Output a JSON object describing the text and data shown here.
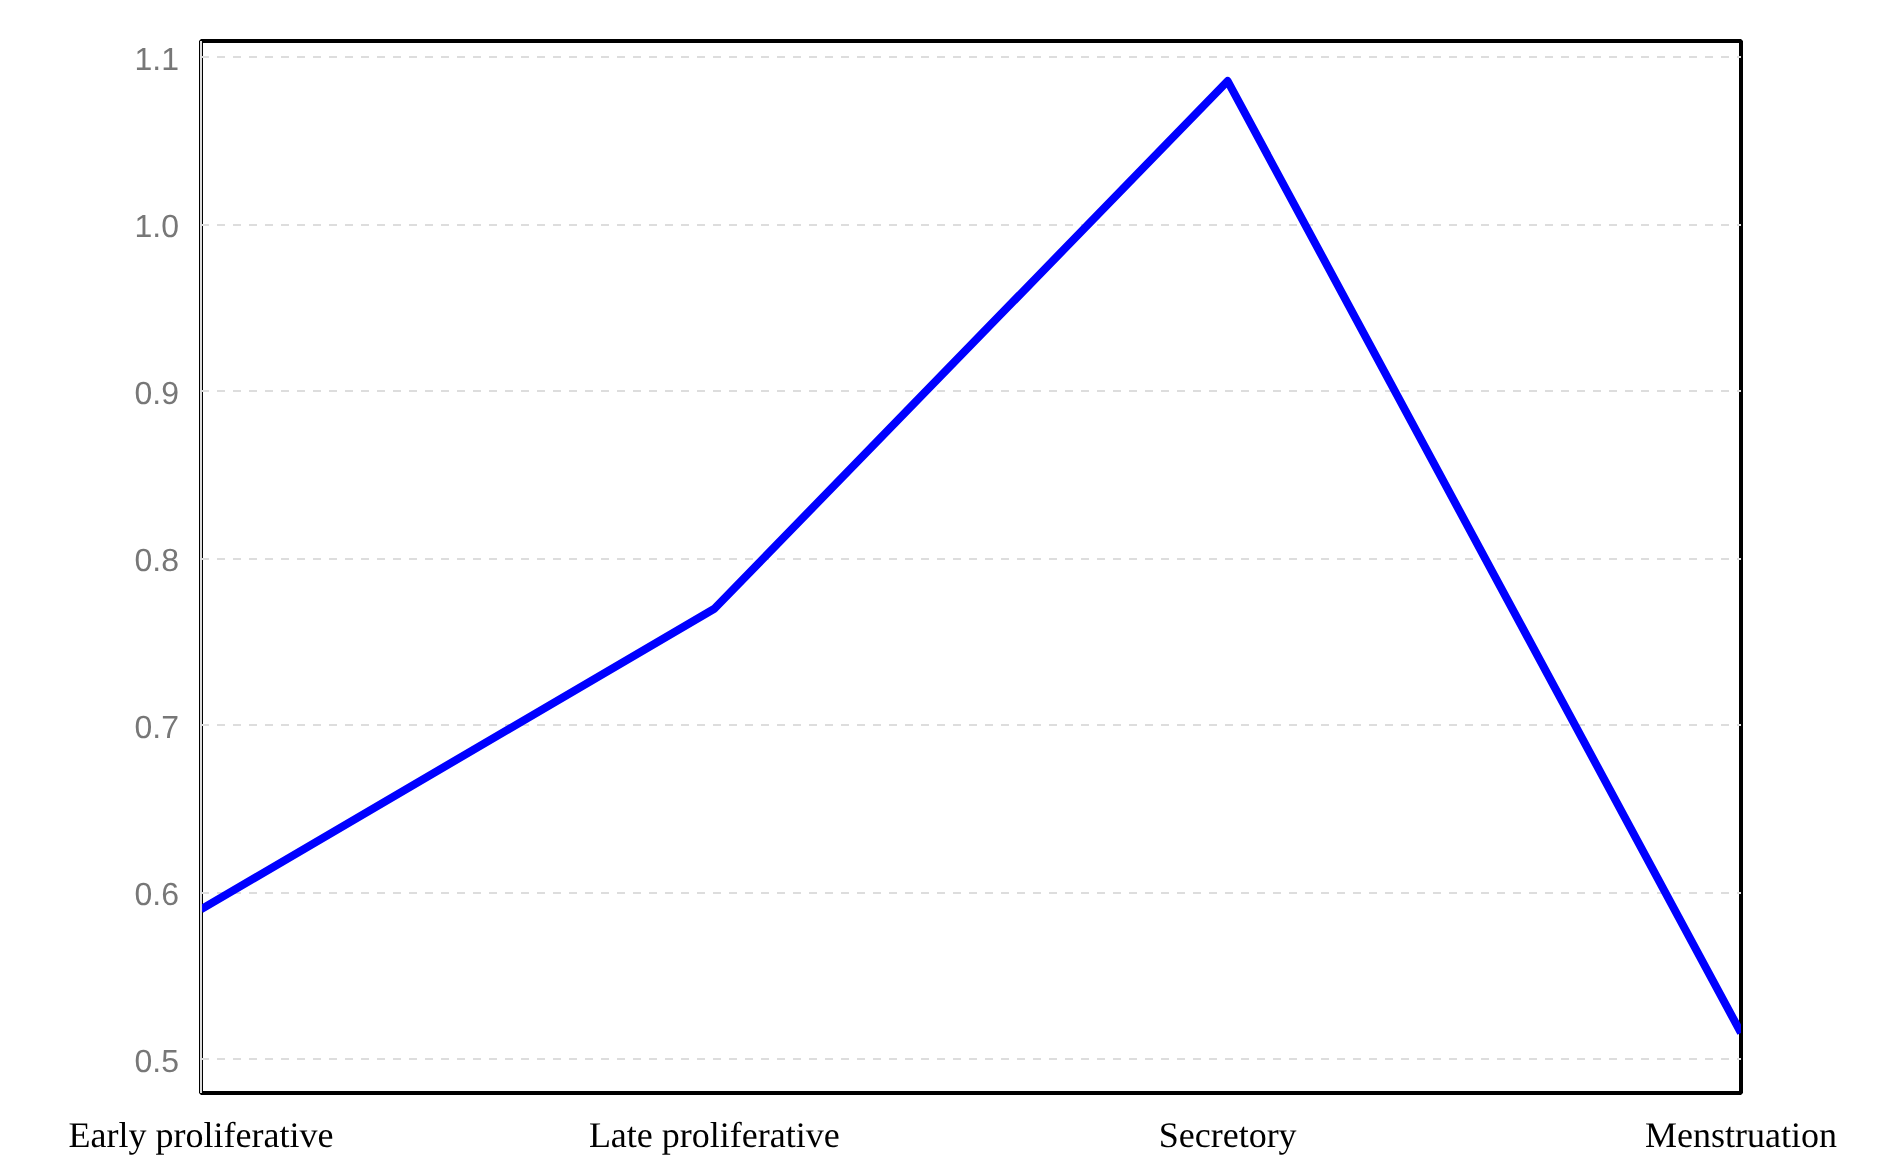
{
  "chart_data": {
    "type": "line",
    "categories": [
      "Early proliferative",
      "Late proliferative",
      "Secretory",
      "Menstruation"
    ],
    "series": [
      {
        "color": "#0000ff",
        "values": [
          0.59,
          0.77,
          1.086,
          0.516
        ]
      }
    ],
    "ylim": [
      0.48,
      1.11
    ],
    "yticks": [
      {
        "value": 0.5,
        "label": "0.5"
      },
      {
        "value": 0.6,
        "label": "0.6"
      },
      {
        "value": 0.7,
        "label": "0.7"
      },
      {
        "value": 0.8,
        "label": "0.8"
      },
      {
        "value": 0.9,
        "label": "0.9"
      },
      {
        "value": 1.0,
        "label": "1.0"
      },
      {
        "value": 1.1,
        "label": "1.1"
      }
    ],
    "grid": "y",
    "line_style": "solid"
  }
}
